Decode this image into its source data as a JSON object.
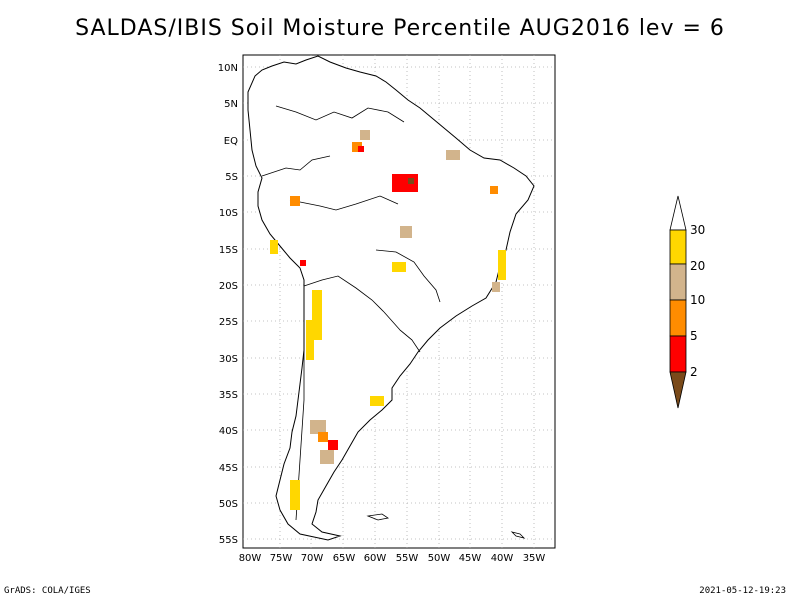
{
  "title": "SALDAS/IBIS Soil Moisture Percentile AUG2016 lev = 6",
  "footer": {
    "left": "GrADS: COLA/IGES",
    "right": "2021-05-12-19:23"
  },
  "lat_ticks": [
    "10N",
    "5N",
    "EQ",
    "5S",
    "10S",
    "15S",
    "20S",
    "25S",
    "30S",
    "35S",
    "40S",
    "45S",
    "50S",
    "55S"
  ],
  "lon_ticks": [
    "80W",
    "75W",
    "70W",
    "65W",
    "60W",
    "55W",
    "50W",
    "45W",
    "40W",
    "35W"
  ],
  "legend": {
    "labels": [
      "2",
      "5",
      "10",
      "20",
      "30"
    ],
    "colors": {
      "lt2": "#7a4a1a",
      "2_5": "#ff0000",
      "5_10": "#ff8c00",
      "10_20": "#d2b48c",
      "20_30": "#ffd700",
      "gt30": "#ffffff"
    }
  },
  "colors": {
    "coast": "#000000",
    "grid": "#b0b0b0"
  }
}
